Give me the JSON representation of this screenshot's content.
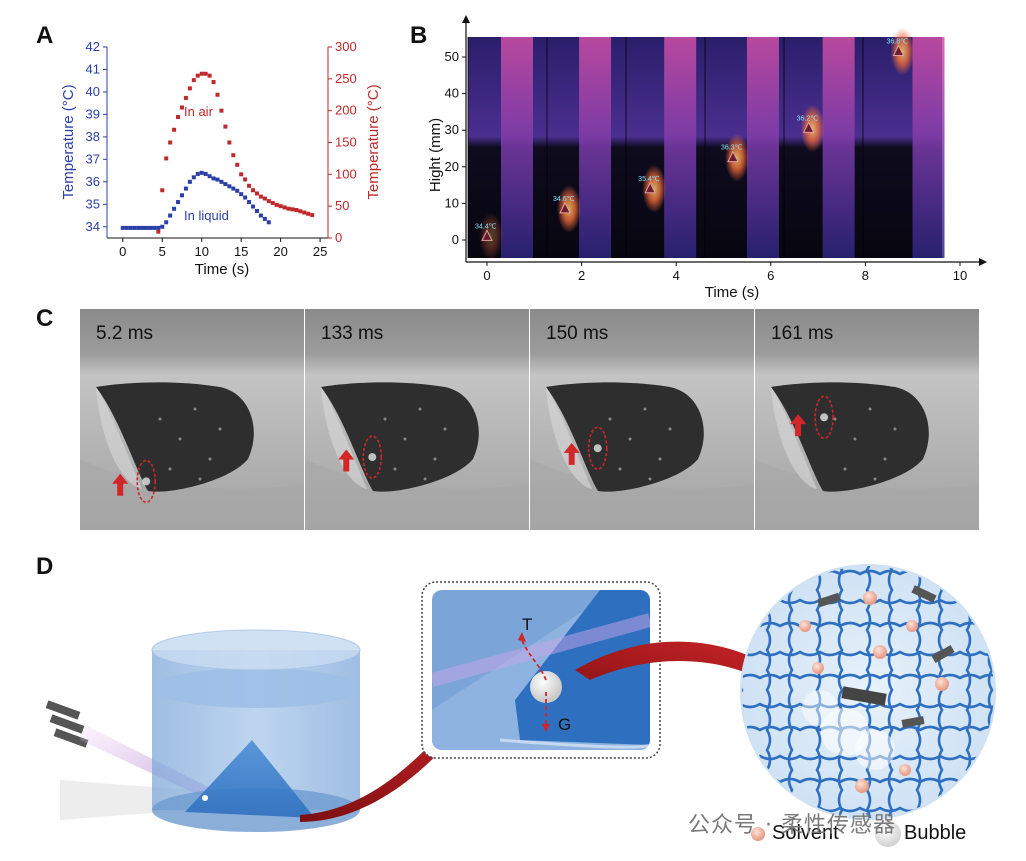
{
  "panels": {
    "a": "A",
    "b": "B",
    "c": "C",
    "d": "D"
  },
  "chart_data": [
    {
      "type": "scatter",
      "panel": "A",
      "xlabel": "Time (s)",
      "ylabel_left": "Temperature (°C)",
      "ylabel_right": "Temperature (°C)",
      "xlim": [
        -2,
        26
      ],
      "ylim_left": [
        33.5,
        42
      ],
      "ylim_right": [
        0,
        300
      ],
      "xticks": [
        "0",
        "5",
        "10",
        "15",
        "20",
        "25"
      ],
      "yticks_left": [
        "34",
        "35",
        "36",
        "37",
        "38",
        "39",
        "40",
        "41",
        "42"
      ],
      "yticks_right": [
        "0",
        "50",
        "100",
        "150",
        "200",
        "250",
        "300"
      ],
      "series": [
        {
          "name": "In air",
          "axis": "right",
          "color": "#c0292b",
          "x": [
            4.5,
            5.0,
            5.5,
            6.0,
            6.5,
            7.0,
            7.5,
            8.0,
            8.5,
            9.0,
            9.5,
            10.0,
            10.5,
            11.0,
            11.5,
            12.0,
            12.5,
            13.0,
            13.5,
            14.0,
            14.5,
            15.0,
            15.5,
            16.0,
            16.5,
            17.0,
            17.5,
            18.0,
            18.5,
            19.0,
            19.5,
            20.0,
            20.5,
            21.0,
            21.5,
            22.0,
            22.5,
            23.0,
            23.5,
            24.0
          ],
          "y": [
            10,
            75,
            125,
            150,
            170,
            190,
            205,
            220,
            235,
            248,
            255,
            258,
            258,
            255,
            245,
            225,
            200,
            175,
            150,
            130,
            115,
            100,
            92,
            82,
            75,
            70,
            65,
            62,
            58,
            55,
            52,
            50,
            48,
            46,
            45,
            44,
            42,
            40,
            38,
            36
          ]
        },
        {
          "name": "In liquid",
          "axis": "left",
          "color": "#2b3fa8",
          "x": [
            0,
            0.5,
            1,
            1.5,
            2,
            2.5,
            3,
            3.5,
            4,
            4.5,
            5,
            5.5,
            6,
            6.5,
            7,
            7.5,
            8,
            8.5,
            9,
            9.5,
            10,
            10.5,
            11,
            11.5,
            12,
            12.5,
            13,
            13.5,
            14,
            14.5,
            15,
            15.5,
            16,
            16.5,
            17,
            17.5,
            18,
            18.5
          ],
          "y": [
            33.95,
            33.95,
            33.95,
            33.95,
            33.95,
            33.95,
            33.95,
            33.95,
            33.95,
            33.95,
            34.0,
            34.2,
            34.5,
            34.8,
            35.1,
            35.4,
            35.7,
            36.0,
            36.2,
            36.35,
            36.4,
            36.35,
            36.25,
            36.15,
            36.1,
            36.0,
            35.9,
            35.8,
            35.7,
            35.6,
            35.45,
            35.3,
            35.1,
            34.9,
            34.7,
            34.5,
            34.35,
            34.2
          ]
        }
      ],
      "annotations": [
        "In air",
        "In liquid"
      ]
    },
    {
      "type": "heatmap",
      "panel": "B",
      "xlabel": "Time (s)",
      "ylabel": "Hight (mm)",
      "xlim": [
        -0.5,
        10
      ],
      "ylim": [
        -5,
        55
      ],
      "xticks": [
        "0",
        "2",
        "4",
        "6",
        "8",
        "10"
      ],
      "yticks": [
        "0",
        "10",
        "20",
        "30",
        "40",
        "50"
      ],
      "markers": [
        {
          "t": 0.0,
          "h": 1,
          "label": "34.4℃"
        },
        {
          "t": 1.65,
          "h": 8.5,
          "label": "34.6℃"
        },
        {
          "t": 3.45,
          "h": 14,
          "label": "35.4℃"
        },
        {
          "t": 5.2,
          "h": 22.5,
          "label": "36.3℃"
        },
        {
          "t": 6.8,
          "h": 30.5,
          "label": "36.2℃"
        },
        {
          "t": 8.7,
          "h": 51.5,
          "label": "36.8℃"
        }
      ]
    }
  ],
  "frames": [
    {
      "label": "5.2 ms",
      "arrow_y": 0.8,
      "bubble_y": 0.78
    },
    {
      "label": "133 ms",
      "arrow_y": 0.69,
      "bubble_y": 0.67
    },
    {
      "label": "150 ms",
      "arrow_y": 0.66,
      "bubble_y": 0.63
    },
    {
      "label": "161 ms",
      "arrow_y": 0.53,
      "bubble_y": 0.49
    }
  ],
  "diagram": {
    "force_top": "T",
    "force_bottom": "G",
    "legend_solvent": "Solvent",
    "legend_bubble": "Bubble"
  },
  "watermark": "公众号 · 柔性传感器"
}
